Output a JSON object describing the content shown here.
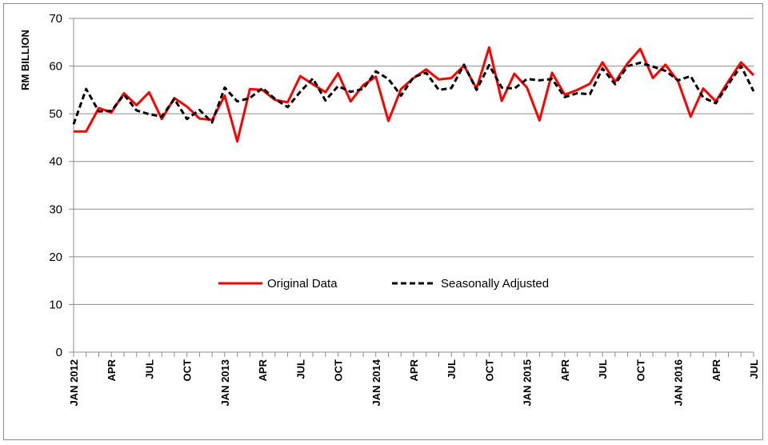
{
  "chart_data": {
    "type": "line",
    "title": "",
    "xlabel": "",
    "ylabel": "RM BILLION",
    "ylim": [
      0,
      70
    ],
    "yticks": [
      0,
      10,
      20,
      30,
      40,
      50,
      60,
      70
    ],
    "grid": true,
    "legend_position": "center",
    "x_tick_labels": [
      {
        "index": 0,
        "label": "JAN 2012"
      },
      {
        "index": 3,
        "label": "APR"
      },
      {
        "index": 6,
        "label": "JUL"
      },
      {
        "index": 9,
        "label": "OCT"
      },
      {
        "index": 12,
        "label": "JAN 2013"
      },
      {
        "index": 15,
        "label": "APR"
      },
      {
        "index": 18,
        "label": "JUL"
      },
      {
        "index": 21,
        "label": "OCT"
      },
      {
        "index": 24,
        "label": "JAN 2014"
      },
      {
        "index": 27,
        "label": "APR"
      },
      {
        "index": 30,
        "label": "JUL"
      },
      {
        "index": 33,
        "label": "OCT"
      },
      {
        "index": 36,
        "label": "JAN 2015"
      },
      {
        "index": 39,
        "label": "APR"
      },
      {
        "index": 42,
        "label": "JUL"
      },
      {
        "index": 45,
        "label": "OCT"
      },
      {
        "index": 48,
        "label": "JAN 2016"
      },
      {
        "index": 51,
        "label": "APR"
      },
      {
        "index": 54,
        "label": "JUL"
      }
    ],
    "series": [
      {
        "name": "Original Data",
        "color": "#ff0000",
        "style": "solid",
        "values": [
          46.3,
          46.3,
          51.2,
          50.3,
          54.3,
          51.8,
          54.5,
          48.9,
          53.3,
          51.5,
          49.0,
          48.7,
          53.8,
          44.2,
          55.2,
          55.0,
          52.9,
          52.4,
          57.9,
          56.2,
          54.5,
          58.5,
          52.6,
          56.0,
          57.8,
          48.5,
          55.2,
          57.5,
          59.3,
          57.2,
          57.5,
          60.1,
          55.3,
          63.9,
          52.7,
          58.4,
          55.5,
          48.6,
          58.6,
          54.0,
          55.0,
          56.3,
          60.8,
          56.7,
          60.6,
          63.6,
          57.5,
          60.3,
          56.8,
          49.4,
          55.3,
          52.6,
          56.8,
          60.8,
          58.1
        ]
      },
      {
        "name": "Seasonally Adjusted",
        "color": "#000000",
        "style": "dashed",
        "values": [
          47.8,
          55.2,
          50.5,
          50.6,
          54.0,
          50.7,
          49.9,
          49.4,
          53.1,
          48.9,
          50.8,
          48.2,
          55.5,
          52.6,
          53.3,
          55.4,
          53.1,
          51.4,
          54.6,
          57.4,
          52.8,
          55.8,
          54.6,
          55.2,
          58.9,
          57.3,
          53.8,
          57.7,
          58.6,
          55.0,
          55.4,
          60.3,
          55.0,
          60.2,
          55.5,
          55.3,
          57.3,
          57.0,
          57.3,
          53.5,
          54.3,
          54.1,
          59.5,
          56.2,
          60.0,
          60.7,
          59.9,
          59.0,
          57.0,
          57.9,
          53.4,
          52.2,
          56.2,
          60.0,
          54.7
        ]
      }
    ]
  }
}
